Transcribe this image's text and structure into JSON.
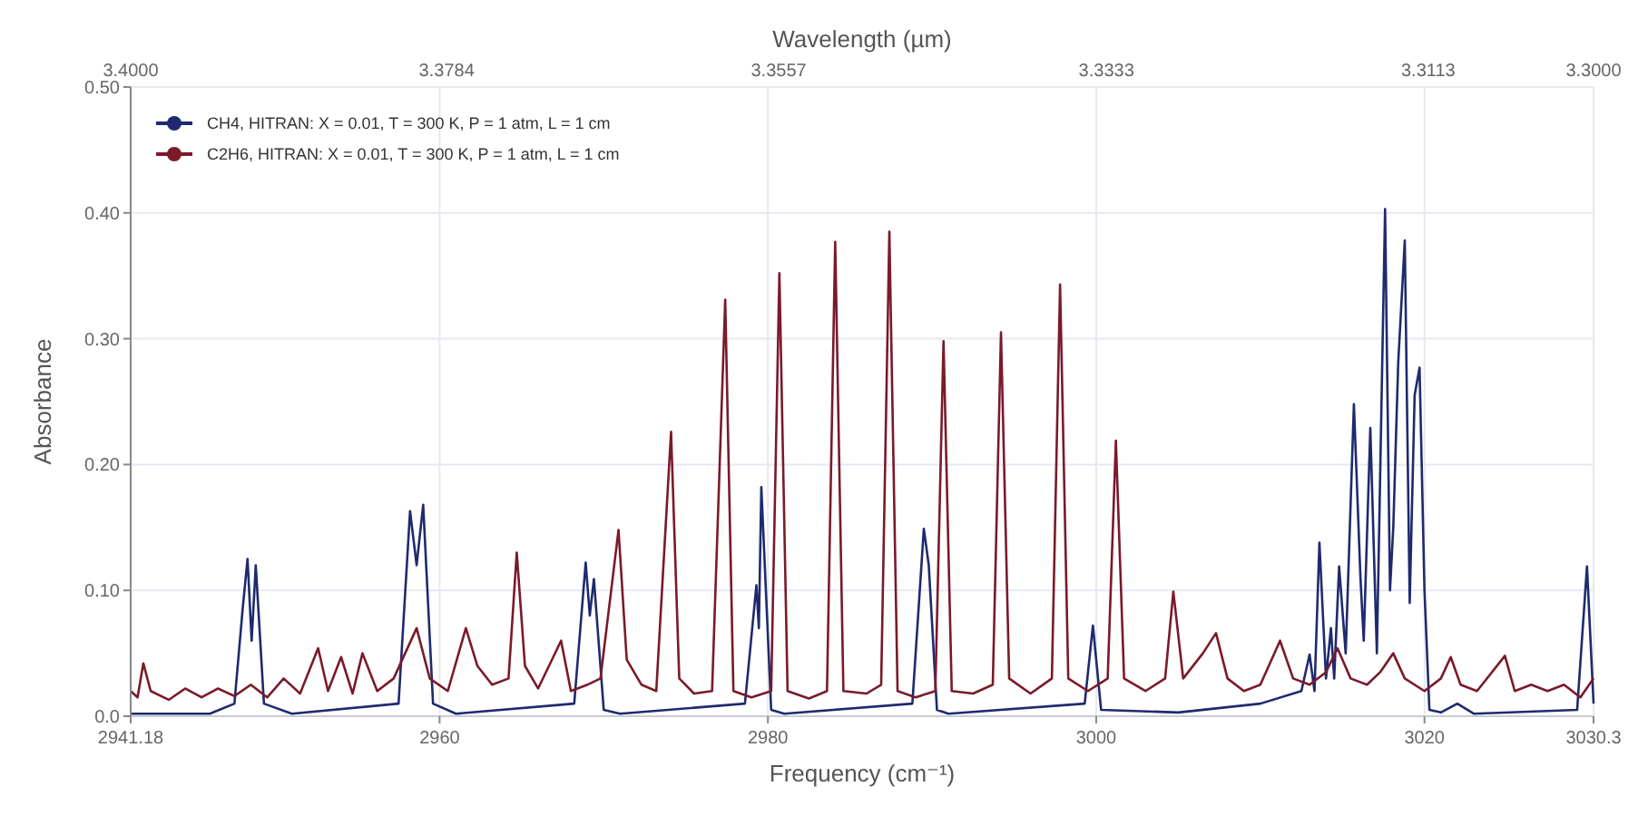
{
  "chart_data": {
    "type": "line",
    "xlabel": "Frequency (cm⁻¹)",
    "ylabel": "Absorbance",
    "x2label": "Wavelength (µm)",
    "xlim": [
      2941.18,
      3030.3
    ],
    "xticks": [
      2941.18,
      2960,
      2980,
      3000,
      3020,
      3030.3
    ],
    "x2lim": [
      3.4,
      3.3
    ],
    "x2ticks": [
      {
        "value": 3.4,
        "label": "3.4000"
      },
      {
        "value": 3.3784,
        "label": "3.3784"
      },
      {
        "value": 3.3557,
        "label": "3.3557"
      },
      {
        "value": 3.3333,
        "label": "3.3333"
      },
      {
        "value": 3.3113,
        "label": "3.3113"
      },
      {
        "value": 3.3,
        "label": "3.3000"
      }
    ],
    "ylim": [
      0,
      0.5
    ],
    "yticks": [
      {
        "value": 0,
        "label": "0.0"
      },
      {
        "value": 0.1,
        "label": "0.10"
      },
      {
        "value": 0.2,
        "label": "0.20"
      },
      {
        "value": 0.3,
        "label": "0.30"
      },
      {
        "value": 0.4,
        "label": "0.40"
      },
      {
        "value": 0.5,
        "label": "0.50"
      }
    ],
    "grid": true,
    "legend": "top left",
    "line_style": "solid",
    "series": [
      {
        "name": "CH4, HITRAN: X = 0.01, T = 300 K, P = 1 atm, L = 1 cm",
        "color": "#1f2a6e",
        "x": [
          2941.18,
          2946,
          2947.5,
          2948.0,
          2948.3,
          2948.55,
          2948.8,
          2949.3,
          2951,
          2957.5,
          2958.2,
          2958.6,
          2959.0,
          2959.6,
          2961,
          2968.2,
          2968.9,
          2969.15,
          2969.4,
          2970,
          2971,
          2978.6,
          2979.3,
          2979.45,
          2979.6,
          2980.2,
          2981,
          2988.8,
          2989.5,
          2989.8,
          2990.3,
          2991,
          2999.3,
          2999.8,
          3000.3,
          3005,
          3010,
          3012.5,
          3013,
          3013.3,
          3013.6,
          3014,
          3014.3,
          3014.5,
          3014.8,
          3015.2,
          3015.7,
          3016.1,
          3016.3,
          3016.7,
          3017.1,
          3017.6,
          3017.9,
          3018.1,
          3018.4,
          3018.8,
          3019.1,
          3019.4,
          3019.7,
          3020.0,
          3020.3,
          3021,
          3022,
          3023,
          3029.3,
          3029.9,
          3030.3
        ],
        "values": [
          0.002,
          0.002,
          0.01,
          0.085,
          0.125,
          0.06,
          0.12,
          0.01,
          0.002,
          0.01,
          0.163,
          0.12,
          0.168,
          0.01,
          0.002,
          0.01,
          0.122,
          0.08,
          0.109,
          0.005,
          0.002,
          0.01,
          0.104,
          0.07,
          0.182,
          0.005,
          0.002,
          0.01,
          0.149,
          0.12,
          0.005,
          0.002,
          0.01,
          0.072,
          0.005,
          0.003,
          0.01,
          0.02,
          0.049,
          0.02,
          0.138,
          0.03,
          0.07,
          0.03,
          0.119,
          0.05,
          0.248,
          0.11,
          0.06,
          0.229,
          0.05,
          0.403,
          0.1,
          0.15,
          0.281,
          0.378,
          0.09,
          0.255,
          0.277,
          0.1,
          0.005,
          0.003,
          0.01,
          0.002,
          0.005,
          0.119,
          0.01
        ]
      },
      {
        "name": "C2H6, HITRAN: X = 0.01, T = 300 K, P = 1 atm, L = 1 cm",
        "color": "#7a1a2a",
        "x": [
          2941.18,
          2941.6,
          2941.95,
          2942.4,
          2943.5,
          2944.5,
          2945.5,
          2946.5,
          2947.5,
          2948.5,
          2949.5,
          2950.5,
          2951.5,
          2952.6,
          2953.2,
          2954,
          2954.7,
          2955.3,
          2956.2,
          2957.2,
          2958.6,
          2959.4,
          2960.5,
          2961.6,
          2962.3,
          2963.2,
          2964.2,
          2964.7,
          2965.2,
          2966,
          2967.4,
          2968,
          2969,
          2969.8,
          2970.9,
          2971.4,
          2972.3,
          2973.2,
          2974.1,
          2974.6,
          2975.5,
          2976.6,
          2977.4,
          2977.9,
          2979,
          2980.2,
          2980.7,
          2981.2,
          2982.5,
          2983.6,
          2984.1,
          2984.6,
          2986,
          2986.9,
          2987.4,
          2987.9,
          2989,
          2990.2,
          2990.7,
          2991.2,
          2992.5,
          2993.7,
          2994.2,
          2994.7,
          2996,
          2997.3,
          2997.8,
          2998.3,
          2999.5,
          3000.7,
          3001.2,
          3001.7,
          3003,
          3004.2,
          3004.7,
          3005.3,
          3006.5,
          3007.3,
          3008,
          3009,
          3010,
          3011.2,
          3012,
          3013,
          3014,
          3014.7,
          3015.5,
          3016.5,
          3017.3,
          3018.1,
          3018.8,
          3020,
          3021,
          3021.6,
          3022.2,
          3023.2,
          3024.9,
          3025.5,
          3026.5,
          3027.5,
          3028.5,
          3029.5,
          3030.3
        ],
        "values": [
          0.02,
          0.015,
          0.042,
          0.02,
          0.013,
          0.022,
          0.015,
          0.022,
          0.016,
          0.025,
          0.015,
          0.03,
          0.018,
          0.054,
          0.02,
          0.047,
          0.018,
          0.05,
          0.02,
          0.03,
          0.07,
          0.03,
          0.02,
          0.07,
          0.04,
          0.025,
          0.03,
          0.13,
          0.04,
          0.022,
          0.06,
          0.02,
          0.025,
          0.03,
          0.148,
          0.045,
          0.025,
          0.02,
          0.226,
          0.03,
          0.018,
          0.02,
          0.331,
          0.02,
          0.015,
          0.02,
          0.352,
          0.02,
          0.014,
          0.02,
          0.377,
          0.02,
          0.018,
          0.025,
          0.385,
          0.02,
          0.015,
          0.02,
          0.298,
          0.02,
          0.018,
          0.025,
          0.305,
          0.03,
          0.018,
          0.03,
          0.343,
          0.03,
          0.02,
          0.03,
          0.219,
          0.03,
          0.02,
          0.03,
          0.099,
          0.03,
          0.05,
          0.066,
          0.03,
          0.02,
          0.025,
          0.06,
          0.03,
          0.025,
          0.035,
          0.054,
          0.03,
          0.025,
          0.035,
          0.05,
          0.03,
          0.02,
          0.03,
          0.047,
          0.025,
          0.02,
          0.048,
          0.02,
          0.025,
          0.02,
          0.025,
          0.015,
          0.03
        ]
      }
    ]
  }
}
